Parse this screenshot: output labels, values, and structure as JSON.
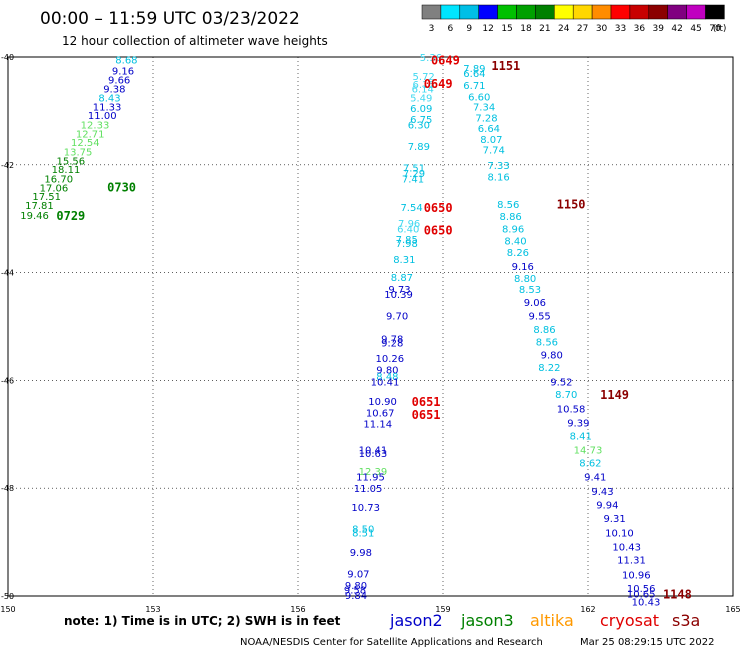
{
  "header": {
    "title": "00:00 – 11:59 UTC 03/23/2022",
    "subtitle": "12 hour collection of altimeter wave heights"
  },
  "colorbar": {
    "unit": "(ft)",
    "bins": [
      {
        "label": "3",
        "color": "#808080"
      },
      {
        "label": "6",
        "color": "#00e5ff"
      },
      {
        "label": "9",
        "color": "#00bfe6"
      },
      {
        "label": "12",
        "color": "#0000ff"
      },
      {
        "label": "15",
        "color": "#00c000"
      },
      {
        "label": "18",
        "color": "#00a000"
      },
      {
        "label": "21",
        "color": "#008000"
      },
      {
        "label": "24",
        "color": "#ffff00"
      },
      {
        "label": "27",
        "color": "#ffd700"
      },
      {
        "label": "30",
        "color": "#ff8c00"
      },
      {
        "label": "33",
        "color": "#ff0000"
      },
      {
        "label": "36",
        "color": "#c80000"
      },
      {
        "label": "39",
        "color": "#8b0000"
      },
      {
        "label": "42",
        "color": "#800080"
      },
      {
        "label": "45",
        "color": "#c000c0"
      },
      {
        "label": "70",
        "color": "#000000"
      }
    ]
  },
  "chart_data": {
    "type": "scatter",
    "title": "00:00 – 11:59 UTC 03/23/2022",
    "subtitle": "12 hour collection of altimeter wave heights",
    "xlim": [
      150,
      165
    ],
    "ylim": [
      -50,
      -40
    ],
    "xticks": [
      "150",
      "153",
      "156",
      "159",
      "162",
      "165"
    ],
    "yticks": [
      "-40",
      "-42",
      "-44",
      "-46",
      "-48",
      "-50"
    ],
    "xtick_values": [
      150,
      153,
      156,
      159,
      162,
      165
    ],
    "ytick_values": [
      -40,
      -42,
      -44,
      -46,
      -48,
      -50
    ],
    "grid": true,
    "color_key": {
      "cyan": "#00c0e0",
      "lightcyan": "#40d8f0",
      "blue": "#0000c8",
      "green": "#008000",
      "lightgreen": "#60e060",
      "red": "#e00000",
      "darkred": "#8b0000"
    },
    "tracks": [
      {
        "name": "track-a",
        "points": [
          {
            "x": 152.45,
            "y": -40.05,
            "label": "8.68",
            "color": "cyan"
          },
          {
            "x": 152.38,
            "y": -40.25,
            "label": "9.16",
            "color": "blue"
          },
          {
            "x": 152.3,
            "y": -40.42,
            "label": "9.66",
            "color": "blue"
          },
          {
            "x": 152.2,
            "y": -40.58,
            "label": "9.38",
            "color": "blue"
          },
          {
            "x": 152.1,
            "y": -40.75,
            "label": "8.43",
            "color": "cyan"
          },
          {
            "x": 152.05,
            "y": -40.92,
            "label": "11.33",
            "color": "blue"
          },
          {
            "x": 151.95,
            "y": -41.08,
            "label": "11.00",
            "color": "blue"
          },
          {
            "x": 151.8,
            "y": -41.25,
            "label": "12.33",
            "color": "lightgreen"
          },
          {
            "x": 151.7,
            "y": -41.42,
            "label": "12.71",
            "color": "lightgreen"
          },
          {
            "x": 151.6,
            "y": -41.58,
            "label": "12.54",
            "color": "lightgreen"
          },
          {
            "x": 151.45,
            "y": -41.75,
            "label": "13.75",
            "color": "lightgreen"
          },
          {
            "x": 151.3,
            "y": -41.92,
            "label": "15.56",
            "color": "green"
          },
          {
            "x": 151.2,
            "y": -42.08,
            "label": "18.11",
            "color": "green"
          },
          {
            "x": 151.05,
            "y": -42.25,
            "label": "16.70",
            "color": "green"
          },
          {
            "x": 150.95,
            "y": -42.42,
            "label": "17.06",
            "color": "green"
          },
          {
            "x": 150.8,
            "y": -42.58,
            "label": "17.51",
            "color": "green"
          },
          {
            "x": 150.65,
            "y": -42.75,
            "label": "17.81",
            "color": "green"
          },
          {
            "x": 150.55,
            "y": -42.93,
            "label": "19.46",
            "color": "green"
          }
        ]
      },
      {
        "name": "track-b",
        "points": [
          {
            "x": 158.75,
            "y": -40.0,
            "label": "5.36",
            "color": "lightcyan"
          },
          {
            "x": 158.6,
            "y": -40.35,
            "label": "5.72",
            "color": "lightcyan"
          },
          {
            "x": 158.6,
            "y": -40.5,
            "label": "6.15",
            "color": "lightcyan"
          },
          {
            "x": 158.58,
            "y": -40.58,
            "label": "6.14",
            "color": "lightcyan"
          },
          {
            "x": 158.55,
            "y": -40.75,
            "label": "5.49",
            "color": "lightcyan"
          },
          {
            "x": 158.55,
            "y": -40.95,
            "label": "6.09",
            "color": "cyan"
          },
          {
            "x": 158.55,
            "y": -41.15,
            "label": "6.75",
            "color": "cyan"
          },
          {
            "x": 158.5,
            "y": -41.25,
            "label": "6.30",
            "color": "cyan"
          },
          {
            "x": 158.5,
            "y": -41.65,
            "label": "7.89",
            "color": "cyan"
          },
          {
            "x": 158.4,
            "y": -42.05,
            "label": "7.51",
            "color": "cyan"
          },
          {
            "x": 158.4,
            "y": -42.15,
            "label": "7.29",
            "color": "cyan"
          },
          {
            "x": 158.38,
            "y": -42.25,
            "label": "7.41",
            "color": "cyan"
          },
          {
            "x": 158.35,
            "y": -42.78,
            "label": "7.54",
            "color": "cyan"
          },
          {
            "x": 158.3,
            "y": -43.08,
            "label": "7.96",
            "color": "lightcyan"
          },
          {
            "x": 158.28,
            "y": -43.18,
            "label": "6.40",
            "color": "lightcyan"
          },
          {
            "x": 158.25,
            "y": -43.38,
            "label": "7.85",
            "color": "cyan"
          },
          {
            "x": 158.25,
            "y": -43.45,
            "label": "7.98",
            "color": "cyan"
          },
          {
            "x": 158.2,
            "y": -43.75,
            "label": "8.31",
            "color": "cyan"
          },
          {
            "x": 158.15,
            "y": -44.08,
            "label": "8.87",
            "color": "cyan"
          },
          {
            "x": 158.1,
            "y": -44.3,
            "label": "9.73",
            "color": "blue"
          },
          {
            "x": 158.08,
            "y": -44.4,
            "label": "10.39",
            "color": "blue"
          },
          {
            "x": 158.05,
            "y": -44.8,
            "label": "9.70",
            "color": "blue"
          },
          {
            "x": 157.95,
            "y": -45.22,
            "label": "9.78",
            "color": "blue"
          },
          {
            "x": 157.95,
            "y": -45.3,
            "label": "9.28",
            "color": "blue"
          },
          {
            "x": 157.9,
            "y": -45.58,
            "label": "10.26",
            "color": "blue"
          },
          {
            "x": 157.85,
            "y": -45.8,
            "label": "9.80",
            "color": "blue"
          },
          {
            "x": 157.85,
            "y": -45.92,
            "label": "8.48",
            "color": "cyan"
          },
          {
            "x": 157.8,
            "y": -46.02,
            "label": "10.41",
            "color": "blue"
          },
          {
            "x": 157.75,
            "y": -46.38,
            "label": "10.90",
            "color": "blue"
          },
          {
            "x": 157.7,
            "y": -46.6,
            "label": "10.67",
            "color": "blue"
          },
          {
            "x": 157.65,
            "y": -46.8,
            "label": "11.14",
            "color": "blue"
          },
          {
            "x": 157.55,
            "y": -47.28,
            "label": "10.41",
            "color": "blue"
          },
          {
            "x": 157.55,
            "y": -47.35,
            "label": "10.63",
            "color": "blue"
          },
          {
            "x": 157.55,
            "y": -47.68,
            "label": "12.39",
            "color": "lightgreen"
          },
          {
            "x": 157.5,
            "y": -47.78,
            "label": "11.95",
            "color": "blue"
          },
          {
            "x": 157.45,
            "y": -48.0,
            "label": "11.05",
            "color": "blue"
          },
          {
            "x": 157.4,
            "y": -48.35,
            "label": "10.73",
            "color": "blue"
          },
          {
            "x": 157.35,
            "y": -48.75,
            "label": "8.50",
            "color": "cyan"
          },
          {
            "x": 157.35,
            "y": -48.82,
            "label": "8.51",
            "color": "cyan"
          },
          {
            "x": 157.3,
            "y": -49.18,
            "label": "9.98",
            "color": "blue"
          },
          {
            "x": 157.25,
            "y": -49.58,
            "label": "9.07",
            "color": "blue"
          },
          {
            "x": 157.2,
            "y": -49.8,
            "label": "9.80",
            "color": "blue"
          },
          {
            "x": 157.18,
            "y": -49.88,
            "label": "9.58",
            "color": "blue"
          },
          {
            "x": 157.2,
            "y": -49.98,
            "label": "9.84",
            "color": "blue"
          }
        ]
      },
      {
        "name": "track-c",
        "points": [
          {
            "x": 159.65,
            "y": -40.2,
            "label": "7.89",
            "color": "cyan"
          },
          {
            "x": 159.65,
            "y": -40.3,
            "label": "6.64",
            "color": "cyan"
          },
          {
            "x": 159.65,
            "y": -40.52,
            "label": "6.71",
            "color": "cyan"
          },
          {
            "x": 159.75,
            "y": -40.73,
            "label": "6.60",
            "color": "cyan"
          },
          {
            "x": 159.85,
            "y": -40.92,
            "label": "7.34",
            "color": "cyan"
          },
          {
            "x": 159.9,
            "y": -41.12,
            "label": "7.28",
            "color": "cyan"
          },
          {
            "x": 159.95,
            "y": -41.32,
            "label": "6.64",
            "color": "cyan"
          },
          {
            "x": 160.0,
            "y": -41.52,
            "label": "8.07",
            "color": "cyan"
          },
          {
            "x": 160.05,
            "y": -41.72,
            "label": "7.74",
            "color": "cyan"
          },
          {
            "x": 160.15,
            "y": -42.0,
            "label": "7.33",
            "color": "cyan"
          },
          {
            "x": 160.15,
            "y": -42.22,
            "label": "8.16",
            "color": "cyan"
          },
          {
            "x": 160.35,
            "y": -42.73,
            "label": "8.56",
            "color": "cyan"
          },
          {
            "x": 160.4,
            "y": -42.95,
            "label": "8.86",
            "color": "cyan"
          },
          {
            "x": 160.45,
            "y": -43.18,
            "label": "8.96",
            "color": "cyan"
          },
          {
            "x": 160.5,
            "y": -43.4,
            "label": "8.40",
            "color": "cyan"
          },
          {
            "x": 160.55,
            "y": -43.62,
            "label": "8.26",
            "color": "cyan"
          },
          {
            "x": 160.65,
            "y": -43.88,
            "label": "9.16",
            "color": "blue"
          },
          {
            "x": 160.7,
            "y": -44.1,
            "label": "8.80",
            "color": "cyan"
          },
          {
            "x": 160.8,
            "y": -44.3,
            "label": "8.53",
            "color": "cyan"
          },
          {
            "x": 160.9,
            "y": -44.55,
            "label": "9.06",
            "color": "blue"
          },
          {
            "x": 161.0,
            "y": -44.8,
            "label": "9.55",
            "color": "blue"
          },
          {
            "x": 161.1,
            "y": -45.05,
            "label": "8.86",
            "color": "cyan"
          },
          {
            "x": 161.15,
            "y": -45.28,
            "label": "8.56",
            "color": "cyan"
          },
          {
            "x": 161.25,
            "y": -45.52,
            "label": "9.80",
            "color": "blue"
          },
          {
            "x": 161.2,
            "y": -45.75,
            "label": "8.22",
            "color": "cyan"
          },
          {
            "x": 161.45,
            "y": -46.02,
            "label": "9.52",
            "color": "blue"
          },
          {
            "x": 161.55,
            "y": -46.25,
            "label": "8.70",
            "color": "cyan"
          },
          {
            "x": 161.65,
            "y": -46.52,
            "label": "10.58",
            "color": "blue"
          },
          {
            "x": 161.8,
            "y": -46.78,
            "label": "9.39",
            "color": "blue"
          },
          {
            "x": 161.85,
            "y": -47.02,
            "label": "8.41",
            "color": "cyan"
          },
          {
            "x": 162.0,
            "y": -47.28,
            "label": "14.73",
            "color": "lightgreen"
          },
          {
            "x": 162.05,
            "y": -47.52,
            "label": "8.62",
            "color": "cyan"
          },
          {
            "x": 162.15,
            "y": -47.78,
            "label": "9.41",
            "color": "blue"
          },
          {
            "x": 162.3,
            "y": -48.05,
            "label": "9.43",
            "color": "blue"
          },
          {
            "x": 162.4,
            "y": -48.3,
            "label": "9.94",
            "color": "blue"
          },
          {
            "x": 162.55,
            "y": -48.55,
            "label": "9.31",
            "color": "blue"
          },
          {
            "x": 162.65,
            "y": -48.82,
            "label": "10.10",
            "color": "blue"
          },
          {
            "x": 162.8,
            "y": -49.08,
            "label": "10.43",
            "color": "blue"
          },
          {
            "x": 162.9,
            "y": -49.32,
            "label": "11.31",
            "color": "blue"
          },
          {
            "x": 163.0,
            "y": -49.6,
            "label": "10.96",
            "color": "blue"
          },
          {
            "x": 163.1,
            "y": -49.85,
            "label": "10.56",
            "color": "blue"
          },
          {
            "x": 163.1,
            "y": -49.95,
            "label": "10.65",
            "color": "blue"
          },
          {
            "x": 163.2,
            "y": -50.1,
            "label": "10.43",
            "color": "blue"
          }
        ]
      }
    ],
    "time_labels": [
      {
        "x": 152.35,
        "y": -42.4,
        "label": "0730",
        "color": "green"
      },
      {
        "x": 151.3,
        "y": -42.93,
        "label": "0729",
        "color": "green"
      },
      {
        "x": 159.05,
        "y": -40.05,
        "label": "0649",
        "color": "red"
      },
      {
        "x": 160.3,
        "y": -40.15,
        "label": "1151",
        "color": "darkred"
      },
      {
        "x": 158.9,
        "y": -40.48,
        "label": "0649",
        "color": "red"
      },
      {
        "x": 158.9,
        "y": -42.78,
        "label": "0650",
        "color": "red"
      },
      {
        "x": 161.65,
        "y": -42.72,
        "label": "1150",
        "color": "darkred"
      },
      {
        "x": 158.9,
        "y": -43.2,
        "label": "0650",
        "color": "red"
      },
      {
        "x": 158.65,
        "y": -46.38,
        "label": "0651",
        "color": "red"
      },
      {
        "x": 158.65,
        "y": -46.62,
        "label": "0651",
        "color": "red"
      },
      {
        "x": 162.55,
        "y": -46.25,
        "label": "1149",
        "color": "darkred"
      },
      {
        "x": 163.85,
        "y": -49.95,
        "label": "1148",
        "color": "darkred"
      }
    ]
  },
  "footer": {
    "note": "note: 1) Time is in UTC; 2) SWH is in feet",
    "satellites": [
      {
        "name": "jason2",
        "color": "#0000c8"
      },
      {
        "name": "jason3",
        "color": "#008000"
      },
      {
        "name": "altika",
        "color": "#ff9900"
      },
      {
        "name": "cryosat",
        "color": "#e00000"
      },
      {
        "name": "s3a",
        "color": "#8b0000"
      }
    ],
    "credit": "NOAA/NESDIS Center for Satellite Applications and Research",
    "timestamp": "Mar 25 08:29:15 UTC 2022"
  }
}
